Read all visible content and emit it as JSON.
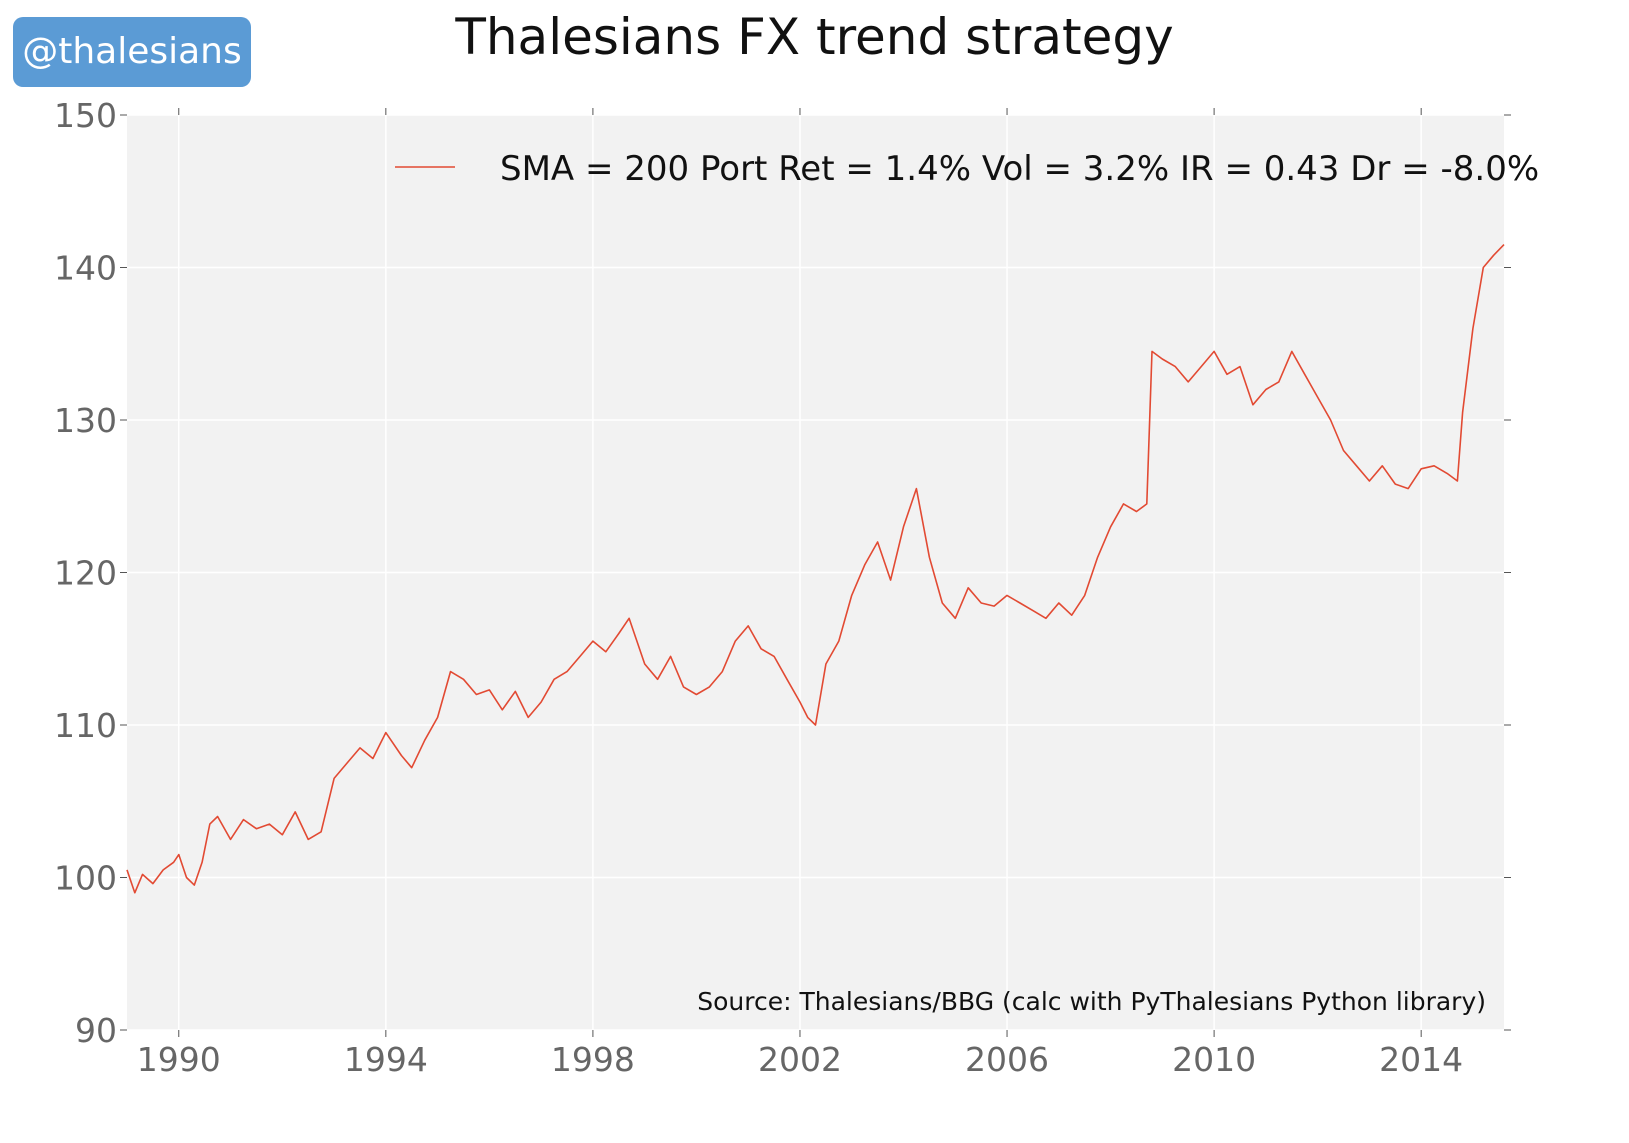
{
  "badge": "@thalesians",
  "chart_data": {
    "type": "line",
    "title": "Thalesians FX trend strategy",
    "xlabel": "",
    "ylabel": "",
    "xlim": [
      1989.0,
      2015.6
    ],
    "ylim": [
      90,
      150
    ],
    "xticks": [
      1990,
      1994,
      1998,
      2002,
      2006,
      2010,
      2014
    ],
    "yticks": [
      90,
      100,
      110,
      120,
      130,
      140,
      150
    ],
    "grid": true,
    "legend_position": "top-right",
    "annotation": "Source: Thalesians/BBG (calc with PyThalesians Python library)",
    "colors": {
      "line": "#e24a33",
      "plot_bg": "#f2f2f2",
      "grid": "#ffffff",
      "badge": "#5b9bd5"
    },
    "series": [
      {
        "name": "SMA = 200 Port Ret = 1.4% Vol = 3.2% IR = 0.43 Dr = -8.0%",
        "x": [
          1989.0,
          1989.15,
          1989.3,
          1989.5,
          1989.7,
          1989.9,
          1990.0,
          1990.15,
          1990.3,
          1990.45,
          1990.6,
          1990.75,
          1991.0,
          1991.25,
          1991.5,
          1991.75,
          1992.0,
          1992.25,
          1992.5,
          1992.75,
          1993.0,
          1993.25,
          1993.5,
          1993.75,
          1994.0,
          1994.3,
          1994.5,
          1994.75,
          1995.0,
          1995.25,
          1995.5,
          1995.75,
          1996.0,
          1996.25,
          1996.5,
          1996.75,
          1997.0,
          1997.25,
          1997.5,
          1997.75,
          1998.0,
          1998.25,
          1998.5,
          1998.7,
          1999.0,
          1999.25,
          1999.5,
          1999.75,
          2000.0,
          2000.25,
          2000.5,
          2000.75,
          2001.0,
          2001.25,
          2001.5,
          2001.75,
          2002.0,
          2002.15,
          2002.3,
          2002.5,
          2002.75,
          2003.0,
          2003.25,
          2003.5,
          2003.75,
          2004.0,
          2004.25,
          2004.5,
          2004.75,
          2005.0,
          2005.25,
          2005.5,
          2005.75,
          2006.0,
          2006.25,
          2006.5,
          2006.75,
          2007.0,
          2007.25,
          2007.5,
          2007.75,
          2008.0,
          2008.25,
          2008.5,
          2008.7,
          2008.8,
          2009.0,
          2009.25,
          2009.5,
          2009.75,
          2010.0,
          2010.25,
          2010.5,
          2010.75,
          2011.0,
          2011.25,
          2011.5,
          2011.75,
          2012.0,
          2012.25,
          2012.5,
          2012.75,
          2013.0,
          2013.25,
          2013.5,
          2013.75,
          2014.0,
          2014.25,
          2014.5,
          2014.7,
          2014.8,
          2015.0,
          2015.2,
          2015.4,
          2015.6
        ],
        "values": [
          100.5,
          99.0,
          100.2,
          99.6,
          100.5,
          101.0,
          101.5,
          100.0,
          99.5,
          101.0,
          103.5,
          104.0,
          102.5,
          103.8,
          103.2,
          103.5,
          102.8,
          104.3,
          102.5,
          103.0,
          106.5,
          107.5,
          108.5,
          107.8,
          109.5,
          108.0,
          107.2,
          109.0,
          110.5,
          113.5,
          113.0,
          112.0,
          112.3,
          111.0,
          112.2,
          110.5,
          111.5,
          113.0,
          113.5,
          114.5,
          115.5,
          114.8,
          116.0,
          117.0,
          114.0,
          113.0,
          114.5,
          112.5,
          112.0,
          112.5,
          113.5,
          115.5,
          116.5,
          115.0,
          114.5,
          113.0,
          111.5,
          110.5,
          110.0,
          114.0,
          115.5,
          118.5,
          120.5,
          122.0,
          119.5,
          123.0,
          125.5,
          121.0,
          118.0,
          117.0,
          119.0,
          118.0,
          117.8,
          118.5,
          118.0,
          117.5,
          117.0,
          118.0,
          117.2,
          118.5,
          121.0,
          123.0,
          124.5,
          124.0,
          124.5,
          134.5,
          134.0,
          133.5,
          132.5,
          133.5,
          134.5,
          133.0,
          133.5,
          131.0,
          132.0,
          132.5,
          134.5,
          133.0,
          131.5,
          130.0,
          128.0,
          127.0,
          126.0,
          127.0,
          125.8,
          125.5,
          126.8,
          127.0,
          126.5,
          126.0,
          130.5,
          136.0,
          140.0,
          140.8,
          141.5
        ]
      }
    ]
  }
}
